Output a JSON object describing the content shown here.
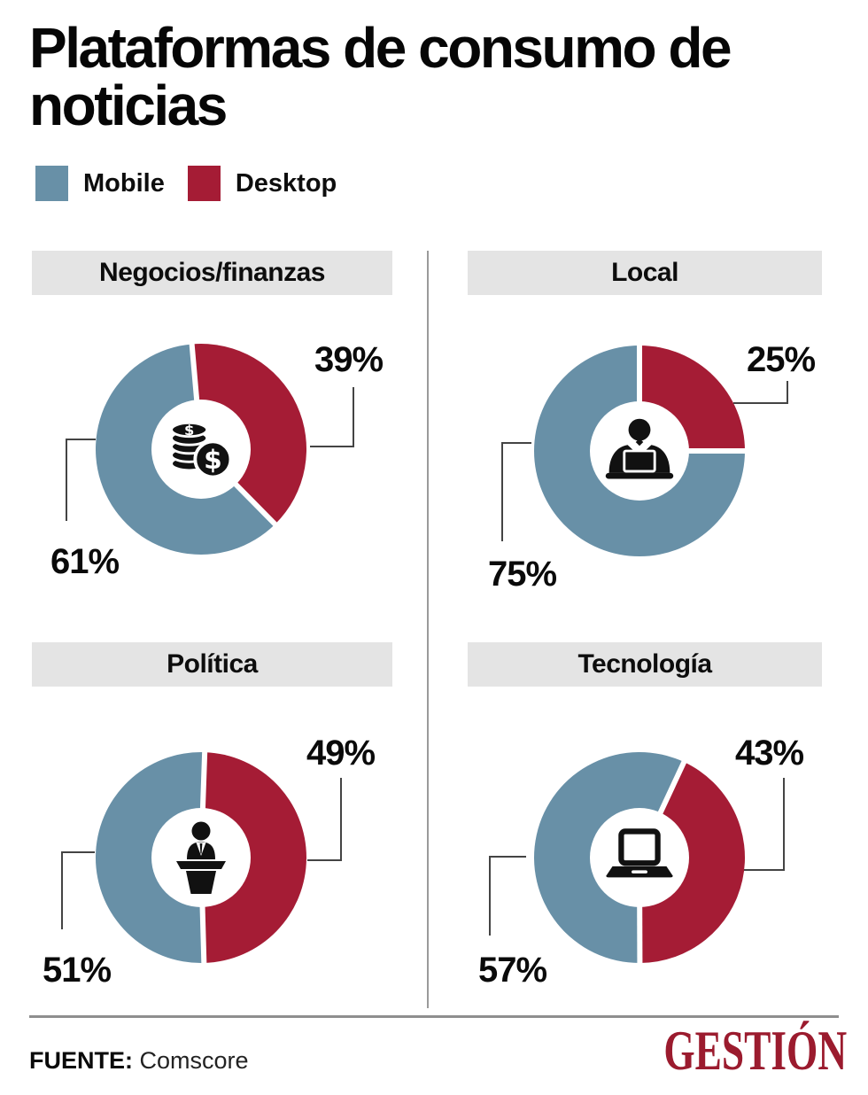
{
  "header": {
    "title": "Plataformas de consumo de noticias"
  },
  "legend": {
    "items": [
      {
        "label": "Mobile",
        "color": "#6890a7"
      },
      {
        "label": "Desktop",
        "color": "#a51c35"
      }
    ]
  },
  "colors": {
    "mobile": "#6890a7",
    "desktop": "#a51c35",
    "band_bg": "#e4e4e4",
    "leader_line": "#444444",
    "divider": "#9a9a9a",
    "footer_rule": "#8e8e8e",
    "brand": "#9b1b2e",
    "icon": "#111111"
  },
  "chart_data": [
    {
      "type": "pie",
      "variant": "donut",
      "title": "Negocios/finanzas",
      "categories": [
        "Mobile",
        "Desktop"
      ],
      "values": [
        61,
        39
      ],
      "labels": [
        "61%",
        "39%"
      ],
      "icon": "coins-icon",
      "desktop_start_deg": -5,
      "legend_position": "top"
    },
    {
      "type": "pie",
      "variant": "donut",
      "title": "Local",
      "categories": [
        "Mobile",
        "Desktop"
      ],
      "values": [
        75,
        25
      ],
      "labels": [
        "75%",
        "25%"
      ],
      "icon": "journalist-icon",
      "desktop_start_deg": 0,
      "legend_position": "top"
    },
    {
      "type": "pie",
      "variant": "donut",
      "title": "Política",
      "categories": [
        "Mobile",
        "Desktop"
      ],
      "values": [
        51,
        49
      ],
      "labels": [
        "51%",
        "49%"
      ],
      "icon": "podium-icon",
      "desktop_start_deg": 2,
      "legend_position": "top"
    },
    {
      "type": "pie",
      "variant": "donut",
      "title": "Tecnología",
      "categories": [
        "Mobile",
        "Desktop"
      ],
      "values": [
        57,
        43
      ],
      "labels": [
        "57%",
        "43%"
      ],
      "icon": "laptop-icon",
      "desktop_start_deg": 25,
      "legend_position": "top"
    }
  ],
  "footer": {
    "source_label": "FUENTE:",
    "source_name": "Comscore",
    "brand": "GESTIÓN"
  }
}
